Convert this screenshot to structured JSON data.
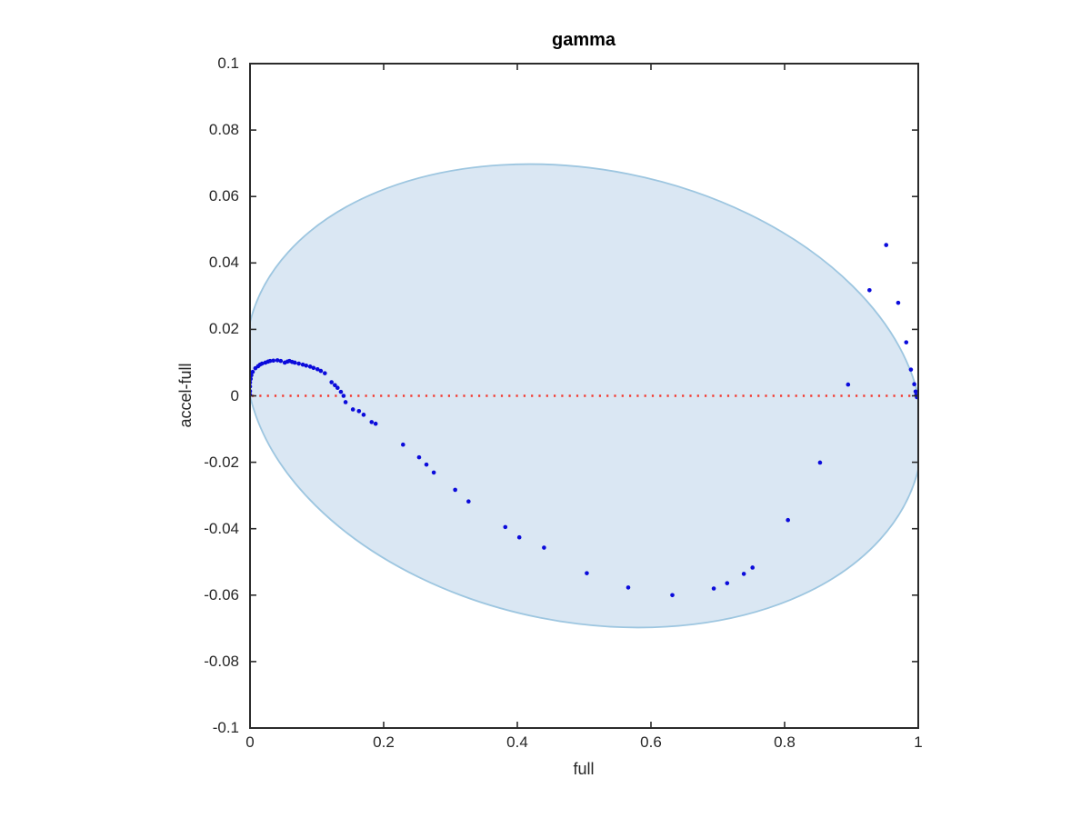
{
  "figure": {
    "title": "gamma",
    "xlabel": "full",
    "ylabel": "accel-full"
  },
  "colors": {
    "axis": "#2b2b2b",
    "tick_label": "#262626",
    "scatter": "#0b0bdb",
    "reference_line": "#f23a30",
    "ellipse_fill": "#dae7f3",
    "ellipse_stroke": "#9dc6e0",
    "background": "#ffffff"
  },
  "chart_data": {
    "type": "scatter",
    "title": "gamma",
    "xlabel": "full",
    "ylabel": "accel-full",
    "xlim": [
      0,
      1
    ],
    "ylim": [
      -0.1,
      0.1
    ],
    "grid": false,
    "legend": "none",
    "x_tick_values": [
      0,
      0.2,
      0.4,
      0.6,
      0.8,
      1
    ],
    "x_tick_labels": [
      "0",
      "0.2",
      "0.4",
      "0.6",
      "0.8",
      "1"
    ],
    "y_tick_values": [
      0.1,
      0.08,
      0.06,
      0.04,
      0.02,
      0,
      -0.02,
      -0.04,
      -0.06,
      -0.08,
      -0.1
    ],
    "y_tick_labels": [
      "0.1",
      "0.08",
      "0.06",
      "0.04",
      "0.02",
      "0",
      "-0.02",
      "-0.04",
      "-0.06",
      "-0.08",
      "-0.1"
    ],
    "reference_line": {
      "y": 0,
      "style": "dotted",
      "color": "#f23a30"
    },
    "confidence_ellipse": {
      "center": [
        0.5,
        0.0
      ],
      "semi_axis_x": 0.5122,
      "semi_axis_y": 0.0681,
      "rotation_deg_screen": 11.25,
      "fill": "#dae7f3",
      "stroke": "#9dc6e0"
    },
    "series": [
      {
        "name": "accel-full",
        "marker": "point",
        "color": "#0b0bdb",
        "points": [
          [
            0.0,
            0.0003
          ],
          [
            0.0,
            0.0014
          ],
          [
            0.0,
            0.0028
          ],
          [
            0.0,
            0.004
          ],
          [
            0.001,
            0.0051
          ],
          [
            0.002,
            0.0062
          ],
          [
            0.004,
            0.0072
          ],
          [
            0.008,
            0.0083
          ],
          [
            0.012,
            0.0089
          ],
          [
            0.015,
            0.0094
          ],
          [
            0.018,
            0.0097
          ],
          [
            0.023,
            0.01
          ],
          [
            0.027,
            0.0103
          ],
          [
            0.03,
            0.0105
          ],
          [
            0.035,
            0.0106
          ],
          [
            0.041,
            0.0107
          ],
          [
            0.046,
            0.0105
          ],
          [
            0.052,
            0.01
          ],
          [
            0.056,
            0.0103
          ],
          [
            0.059,
            0.0105
          ],
          [
            0.063,
            0.0102
          ],
          [
            0.067,
            0.01
          ],
          [
            0.073,
            0.0097
          ],
          [
            0.079,
            0.0094
          ],
          [
            0.084,
            0.0091
          ],
          [
            0.09,
            0.0088
          ],
          [
            0.095,
            0.0084
          ],
          [
            0.101,
            0.008
          ],
          [
            0.106,
            0.0075
          ],
          [
            0.112,
            0.0068
          ],
          [
            0.122,
            0.0041
          ],
          [
            0.127,
            0.0032
          ],
          [
            0.131,
            0.0024
          ],
          [
            0.136,
            0.0012
          ],
          [
            0.14,
            0.0
          ],
          [
            0.143,
            -0.0019
          ],
          [
            0.154,
            -0.0041
          ],
          [
            0.163,
            -0.0046
          ],
          [
            0.17,
            -0.0057
          ],
          [
            0.182,
            -0.0079
          ],
          [
            0.188,
            -0.0084
          ],
          [
            0.229,
            -0.0147
          ],
          [
            0.253,
            -0.0185
          ],
          [
            0.264,
            -0.0207
          ],
          [
            0.275,
            -0.0231
          ],
          [
            0.307,
            -0.0283
          ],
          [
            0.327,
            -0.0318
          ],
          [
            0.382,
            -0.0395
          ],
          [
            0.403,
            -0.0426
          ],
          [
            0.44,
            -0.0457
          ],
          [
            0.504,
            -0.0534
          ],
          [
            0.566,
            -0.0577
          ],
          [
            0.632,
            -0.06
          ],
          [
            0.694,
            -0.058
          ],
          [
            0.714,
            -0.0564
          ],
          [
            0.739,
            -0.0536
          ],
          [
            0.752,
            -0.0517
          ],
          [
            0.805,
            -0.0374
          ],
          [
            0.853,
            -0.0201
          ],
          [
            0.895,
            0.0034
          ],
          [
            0.927,
            0.0318
          ],
          [
            0.952,
            0.0454
          ],
          [
            0.97,
            0.028
          ],
          [
            0.982,
            0.0161
          ],
          [
            0.989,
            0.0079
          ],
          [
            0.994,
            0.0035
          ],
          [
            0.996,
            0.0013
          ],
          [
            0.997,
            0.0002
          ],
          [
            0.998,
            -0.0004
          ]
        ]
      }
    ]
  }
}
